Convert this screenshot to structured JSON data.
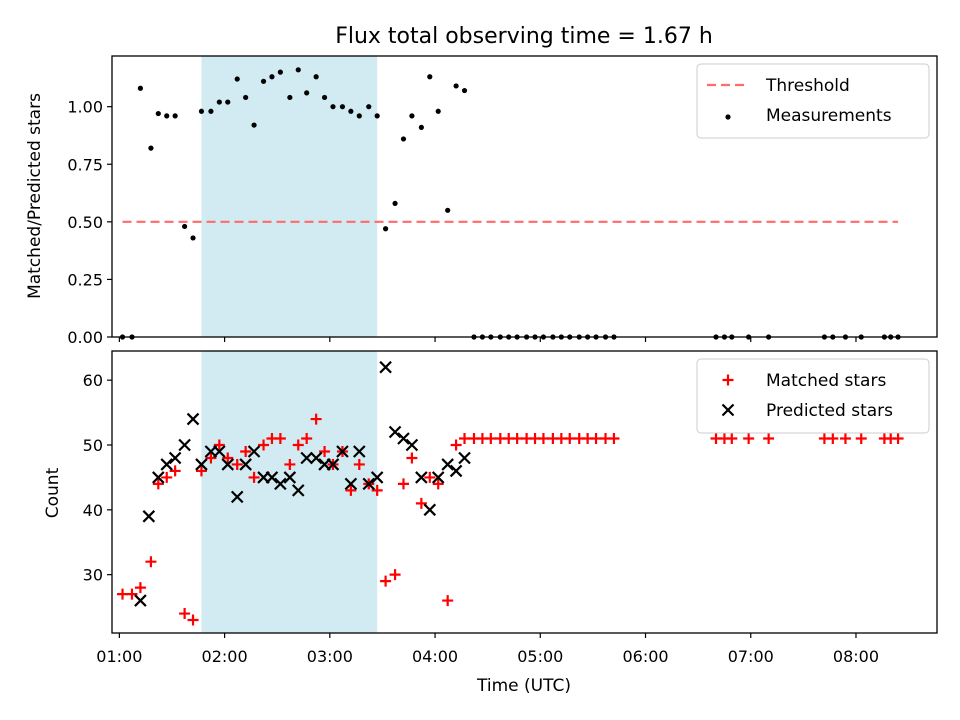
{
  "title": "Flux total observing time = 1.67 h",
  "chart_data": [
    {
      "type": "scatter",
      "panel": "top",
      "title": "Flux total observing time = 1.67 h",
      "xlabel": "",
      "ylabel": "Matched/Predicted stars",
      "xlim": [
        0.93,
        8.77
      ],
      "ylim": [
        0.0,
        1.22
      ],
      "yticks": [
        0.0,
        0.25,
        0.5,
        0.75,
        1.0
      ],
      "ytick_labels": [
        "0.00",
        "0.25",
        "0.50",
        "0.75",
        "1.00"
      ],
      "xticks": [
        1,
        2,
        3,
        4,
        5,
        6,
        7,
        8
      ],
      "grid": false,
      "legend_position": "top-right",
      "shaded_span": {
        "x0": 1.78,
        "x1": 3.45,
        "color": "#add8e6"
      },
      "threshold": {
        "name": "Threshold",
        "y": 0.5,
        "x0": 1.03,
        "x1": 8.4,
        "color": "#ff6b6b"
      },
      "series": [
        {
          "name": "Measurements",
          "color": "#000000",
          "marker": "dot",
          "points": [
            [
              1.03,
              0.0
            ],
            [
              1.12,
              0.0
            ],
            [
              1.2,
              1.08
            ],
            [
              1.3,
              0.82
            ],
            [
              1.37,
              0.97
            ],
            [
              1.45,
              0.96
            ],
            [
              1.53,
              0.96
            ],
            [
              1.62,
              0.48
            ],
            [
              1.7,
              0.43
            ],
            [
              1.78,
              0.98
            ],
            [
              1.87,
              0.98
            ],
            [
              1.95,
              1.02
            ],
            [
              2.03,
              1.02
            ],
            [
              2.12,
              1.12
            ],
            [
              2.2,
              1.04
            ],
            [
              2.28,
              0.92
            ],
            [
              2.37,
              1.11
            ],
            [
              2.45,
              1.13
            ],
            [
              2.53,
              1.15
            ],
            [
              2.62,
              1.04
            ],
            [
              2.7,
              1.16
            ],
            [
              2.78,
              1.06
            ],
            [
              2.87,
              1.13
            ],
            [
              2.95,
              1.04
            ],
            [
              3.03,
              1.0
            ],
            [
              3.12,
              1.0
            ],
            [
              3.2,
              0.98
            ],
            [
              3.28,
              0.96
            ],
            [
              3.37,
              1.0
            ],
            [
              3.45,
              0.96
            ],
            [
              3.53,
              0.47
            ],
            [
              3.62,
              0.58
            ],
            [
              3.7,
              0.86
            ],
            [
              3.78,
              0.96
            ],
            [
              3.87,
              0.91
            ],
            [
              3.95,
              1.13
            ],
            [
              4.03,
              0.98
            ],
            [
              4.12,
              0.55
            ],
            [
              4.2,
              1.09
            ],
            [
              4.28,
              1.07
            ],
            [
              4.37,
              0.0
            ],
            [
              4.45,
              0.0
            ],
            [
              4.53,
              0.0
            ],
            [
              4.62,
              0.0
            ],
            [
              4.7,
              0.0
            ],
            [
              4.78,
              0.0
            ],
            [
              4.87,
              0.0
            ],
            [
              4.95,
              0.0
            ],
            [
              5.03,
              0.0
            ],
            [
              5.12,
              0.0
            ],
            [
              5.2,
              0.0
            ],
            [
              5.28,
              0.0
            ],
            [
              5.37,
              0.0
            ],
            [
              5.45,
              0.0
            ],
            [
              5.53,
              0.0
            ],
            [
              5.62,
              0.0
            ],
            [
              5.7,
              0.0
            ],
            [
              6.67,
              0.0
            ],
            [
              6.75,
              0.0
            ],
            [
              6.82,
              0.0
            ],
            [
              6.98,
              0.0
            ],
            [
              7.17,
              0.0
            ],
            [
              7.7,
              0.0
            ],
            [
              7.78,
              0.0
            ],
            [
              7.9,
              0.0
            ],
            [
              8.05,
              0.0
            ],
            [
              8.27,
              0.0
            ],
            [
              8.33,
              0.0
            ],
            [
              8.4,
              0.0
            ]
          ]
        }
      ]
    },
    {
      "type": "scatter",
      "panel": "bottom",
      "xlabel": "Time (UTC)",
      "ylabel": "Count",
      "xlim": [
        0.93,
        8.77
      ],
      "ylim": [
        21,
        64.5
      ],
      "yticks": [
        30,
        40,
        50,
        60
      ],
      "ytick_labels": [
        "30",
        "40",
        "50",
        "60"
      ],
      "xticks": [
        1,
        2,
        3,
        4,
        5,
        6,
        7,
        8
      ],
      "xtick_labels": [
        "01:00",
        "02:00",
        "03:00",
        "04:00",
        "05:00",
        "06:00",
        "07:00",
        "08:00"
      ],
      "grid": false,
      "legend_position": "top-right",
      "shaded_span": {
        "x0": 1.78,
        "x1": 3.45,
        "color": "#add8e6"
      },
      "series": [
        {
          "name": "Matched stars",
          "color": "#ff0000",
          "marker": "plus",
          "points": [
            [
              1.03,
              27
            ],
            [
              1.12,
              27
            ],
            [
              1.2,
              28
            ],
            [
              1.3,
              32
            ],
            [
              1.37,
              44
            ],
            [
              1.45,
              45
            ],
            [
              1.53,
              46
            ],
            [
              1.62,
              24
            ],
            [
              1.7,
              23
            ],
            [
              1.78,
              46
            ],
            [
              1.87,
              48
            ],
            [
              1.95,
              50
            ],
            [
              2.03,
              48
            ],
            [
              2.12,
              47
            ],
            [
              2.2,
              49
            ],
            [
              2.28,
              45
            ],
            [
              2.37,
              50
            ],
            [
              2.45,
              51
            ],
            [
              2.53,
              51
            ],
            [
              2.62,
              47
            ],
            [
              2.7,
              50
            ],
            [
              2.78,
              51
            ],
            [
              2.87,
              54
            ],
            [
              2.95,
              49
            ],
            [
              3.03,
              47
            ],
            [
              3.12,
              49
            ],
            [
              3.2,
              43
            ],
            [
              3.28,
              47
            ],
            [
              3.37,
              44
            ],
            [
              3.45,
              43
            ],
            [
              3.53,
              29
            ],
            [
              3.62,
              30
            ],
            [
              3.7,
              44
            ],
            [
              3.78,
              48
            ],
            [
              3.87,
              41
            ],
            [
              3.95,
              45
            ],
            [
              4.03,
              44
            ],
            [
              4.12,
              26
            ],
            [
              4.2,
              50
            ],
            [
              4.28,
              51
            ],
            [
              4.37,
              51
            ],
            [
              4.45,
              51
            ],
            [
              4.53,
              51
            ],
            [
              4.62,
              51
            ],
            [
              4.7,
              51
            ],
            [
              4.78,
              51
            ],
            [
              4.87,
              51
            ],
            [
              4.95,
              51
            ],
            [
              5.03,
              51
            ],
            [
              5.12,
              51
            ],
            [
              5.2,
              51
            ],
            [
              5.28,
              51
            ],
            [
              5.37,
              51
            ],
            [
              5.45,
              51
            ],
            [
              5.53,
              51
            ],
            [
              5.62,
              51
            ],
            [
              5.7,
              51
            ],
            [
              6.67,
              51
            ],
            [
              6.75,
              51
            ],
            [
              6.82,
              51
            ],
            [
              6.98,
              51
            ],
            [
              7.17,
              51
            ],
            [
              7.7,
              51
            ],
            [
              7.78,
              51
            ],
            [
              7.9,
              51
            ],
            [
              8.05,
              51
            ],
            [
              8.27,
              51
            ],
            [
              8.33,
              51
            ],
            [
              8.4,
              51
            ]
          ]
        },
        {
          "name": "Predicted stars",
          "color": "#000000",
          "marker": "x",
          "points": [
            [
              1.2,
              26
            ],
            [
              1.28,
              39
            ],
            [
              1.37,
              45
            ],
            [
              1.45,
              47
            ],
            [
              1.53,
              48
            ],
            [
              1.62,
              50
            ],
            [
              1.7,
              54
            ],
            [
              1.78,
              47
            ],
            [
              1.87,
              49
            ],
            [
              1.95,
              49
            ],
            [
              2.03,
              47
            ],
            [
              2.12,
              42
            ],
            [
              2.2,
              47
            ],
            [
              2.28,
              49
            ],
            [
              2.37,
              45
            ],
            [
              2.45,
              45
            ],
            [
              2.53,
              44
            ],
            [
              2.62,
              45
            ],
            [
              2.7,
              43
            ],
            [
              2.78,
              48
            ],
            [
              2.87,
              48
            ],
            [
              2.95,
              47
            ],
            [
              3.03,
              47
            ],
            [
              3.12,
              49
            ],
            [
              3.2,
              44
            ],
            [
              3.28,
              49
            ],
            [
              3.37,
              44
            ],
            [
              3.45,
              45
            ],
            [
              3.53,
              62
            ],
            [
              3.62,
              52
            ],
            [
              3.7,
              51
            ],
            [
              3.78,
              50
            ],
            [
              3.87,
              45
            ],
            [
              3.95,
              40
            ],
            [
              4.03,
              45
            ],
            [
              4.12,
              47
            ],
            [
              4.2,
              46
            ],
            [
              4.28,
              48
            ]
          ]
        }
      ]
    }
  ]
}
